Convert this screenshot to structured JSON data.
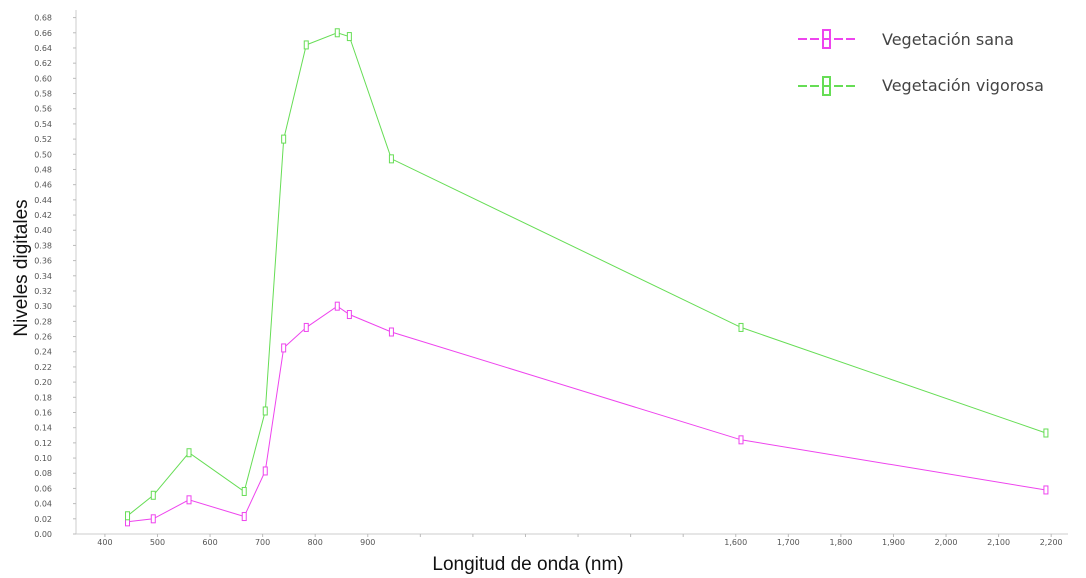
{
  "chart_data": {
    "type": "line",
    "title": "",
    "xlabel": "Longitud de onda (nm)",
    "ylabel": "Niveles digitales",
    "xlim": [
      345,
      2232
    ],
    "ylim": [
      0,
      0.69
    ],
    "x_ticks": [
      400,
      500,
      600,
      700,
      800,
      900,
      1000,
      1100,
      1200,
      1300,
      1400,
      1500,
      1600,
      1700,
      1800,
      1900,
      2000,
      2100,
      2200
    ],
    "x_tick_labels": [
      "400",
      "500",
      "600",
      "700",
      "800",
      "900",
      "",
      "",
      "",
      "",
      "",
      "",
      "1,600",
      "1,700",
      "1,800",
      "1,900",
      "2,000",
      "2,100",
      "2,200"
    ],
    "y_ticks": [
      0,
      0.02,
      0.04,
      0.06,
      0.08,
      0.1,
      0.12,
      0.14,
      0.16,
      0.18,
      0.2,
      0.22,
      0.24,
      0.26,
      0.28,
      0.3,
      0.32,
      0.34,
      0.36,
      0.38,
      0.4,
      0.42,
      0.44,
      0.46,
      0.48,
      0.5,
      0.52,
      0.54,
      0.56,
      0.58,
      0.6,
      0.62,
      0.64,
      0.66,
      0.68
    ],
    "y_tick_labels": [
      "0.00",
      "0.02",
      "0.04",
      "0.06",
      "0.08",
      "0.10",
      "0.12",
      "0.14",
      "0.16",
      "0.18",
      "0.20",
      "0.22",
      "0.24",
      "0.26",
      "0.28",
      "0.30",
      "0.32",
      "0.34",
      "0.36",
      "0.38",
      "0.40",
      "0.42",
      "0.44",
      "0.46",
      "0.48",
      "0.50",
      "0.52",
      "0.54",
      "0.56",
      "0.58",
      "0.60",
      "0.62",
      "0.64",
      "0.66",
      "0.68"
    ],
    "grid": false,
    "legend_position": "top-right",
    "series": [
      {
        "name": "Vegetación sana",
        "color": "#ee44ee",
        "marker": "open-rectangle",
        "x": [
          443,
          492,
          560,
          665,
          705,
          740,
          783,
          842,
          865,
          945,
          1610,
          2190
        ],
        "y": [
          0.016,
          0.02,
          0.045,
          0.023,
          0.083,
          0.245,
          0.272,
          0.3,
          0.289,
          0.266,
          0.124,
          0.058
        ]
      },
      {
        "name": "Vegetación vigorosa",
        "color": "#66dd55",
        "marker": "open-rectangle",
        "x": [
          443,
          492,
          560,
          665,
          705,
          740,
          783,
          842,
          865,
          945,
          1610,
          2190
        ],
        "y": [
          0.024,
          0.051,
          0.107,
          0.056,
          0.162,
          0.52,
          0.644,
          0.66,
          0.655,
          0.494,
          0.272,
          0.133
        ]
      }
    ]
  }
}
